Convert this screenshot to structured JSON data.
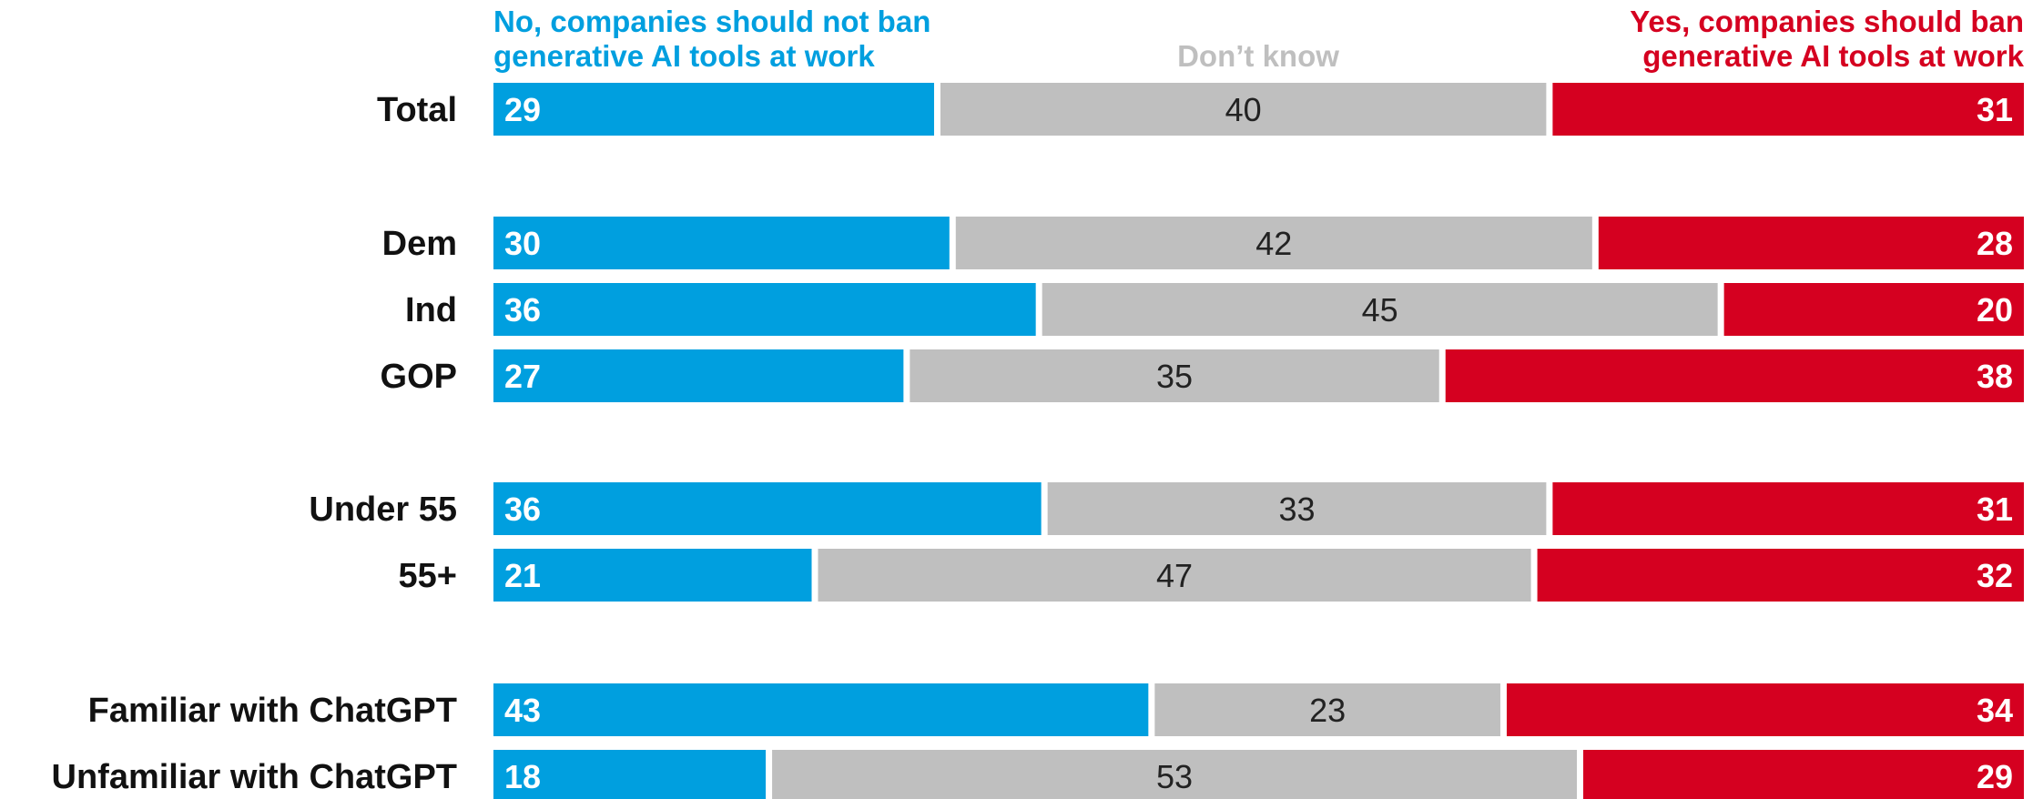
{
  "chart_data": {
    "type": "bar",
    "orientation": "horizontal",
    "stacked": true,
    "normalized_percent": true,
    "categories": [
      "Total",
      "Dem",
      "Ind",
      "GOP",
      "Under 55",
      "55+",
      "Familiar with ChatGPT",
      "Unfamiliar with ChatGPT"
    ],
    "groups": [
      [
        "Total"
      ],
      [
        "Dem",
        "Ind",
        "GOP"
      ],
      [
        "Under 55",
        "55+"
      ],
      [
        "Familiar with ChatGPT",
        "Unfamiliar with ChatGPT"
      ]
    ],
    "series": [
      {
        "name_lines": [
          "No, companies should not ban",
          "generative AI tools at work"
        ],
        "color": "#009fdf",
        "values": [
          29,
          30,
          36,
          27,
          36,
          21,
          43,
          18
        ]
      },
      {
        "name_lines": [
          "Don’t know"
        ],
        "color": "#bfbfbf",
        "values": [
          40,
          42,
          45,
          35,
          33,
          47,
          23,
          53
        ]
      },
      {
        "name_lines": [
          "Yes, companies should ban",
          "generative AI tools at work"
        ],
        "color": "#d50020",
        "values": [
          31,
          28,
          20,
          38,
          31,
          32,
          34,
          29
        ]
      }
    ],
    "legend_placement": "top",
    "grid": false
  }
}
